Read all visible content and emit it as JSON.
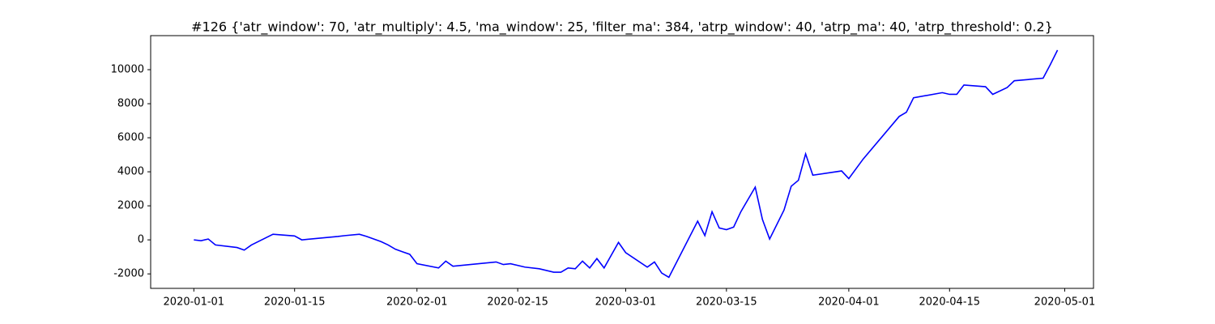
{
  "chart_data": {
    "type": "line",
    "title": "#126 {'atr_window': 70, 'atr_multiply': 4.5, 'ma_window': 25, 'filter_ma': 384, 'atrp_window': 40, 'atrp_ma': 40, 'atrp_threshold': 0.2}",
    "x": [
      "2020-01-01",
      "2020-01-02",
      "2020-01-03",
      "2020-01-04",
      "2020-01-07",
      "2020-01-08",
      "2020-01-09",
      "2020-01-12",
      "2020-01-15",
      "2020-01-16",
      "2020-01-21",
      "2020-01-22",
      "2020-01-24",
      "2020-01-25",
      "2020-01-27",
      "2020-01-28",
      "2020-01-29",
      "2020-01-30",
      "2020-01-31",
      "2020-02-01",
      "2020-02-04",
      "2020-02-05",
      "2020-02-06",
      "2020-02-12",
      "2020-02-13",
      "2020-02-14",
      "2020-02-16",
      "2020-02-18",
      "2020-02-20",
      "2020-02-21",
      "2020-02-22",
      "2020-02-23",
      "2020-02-24",
      "2020-02-25",
      "2020-02-26",
      "2020-02-27",
      "2020-02-29",
      "2020-03-01",
      "2020-03-04",
      "2020-03-05",
      "2020-03-06",
      "2020-03-07",
      "2020-03-11",
      "2020-03-12",
      "2020-03-13",
      "2020-03-14",
      "2020-03-15",
      "2020-03-16",
      "2020-03-17",
      "2020-03-19",
      "2020-03-20",
      "2020-03-21",
      "2020-03-23",
      "2020-03-24",
      "2020-03-25",
      "2020-03-26",
      "2020-03-27",
      "2020-03-31",
      "2020-04-01",
      "2020-04-03",
      "2020-04-08",
      "2020-04-09",
      "2020-04-10",
      "2020-04-14",
      "2020-04-15",
      "2020-04-16",
      "2020-04-17",
      "2020-04-20",
      "2020-04-21",
      "2020-04-23",
      "2020-04-24",
      "2020-04-28",
      "2020-04-29",
      "2020-04-30"
    ],
    "series": [
      {
        "color": "#0000ff",
        "values": [
          0,
          -50,
          50,
          -300,
          -450,
          -600,
          -300,
          330,
          230,
          0,
          200,
          250,
          330,
          200,
          -100,
          -300,
          -550,
          -700,
          -850,
          -1400,
          -1650,
          -1250,
          -1550,
          -1300,
          -1450,
          -1400,
          -1600,
          -1700,
          -1900,
          -1900,
          -1650,
          -1700,
          -1250,
          -1650,
          -1100,
          -1650,
          -150,
          -750,
          -1600,
          -1300,
          -1950,
          -2200,
          1100,
          250,
          1650,
          700,
          600,
          750,
          1650,
          3100,
          1200,
          50,
          1750,
          3150,
          3500,
          5050,
          3800,
          4050,
          3600,
          4750,
          7250,
          7500,
          8350,
          8650,
          8550,
          8550,
          9100,
          9000,
          8550,
          8950,
          9350,
          9500,
          10300,
          11150
        ]
      }
    ],
    "xlim": [
      "2019-12-26",
      "2020-05-05"
    ],
    "xticks": [
      "2020-01-01",
      "2020-01-15",
      "2020-02-01",
      "2020-02-15",
      "2020-03-01",
      "2020-03-15",
      "2020-04-01",
      "2020-04-15",
      "2020-05-01"
    ],
    "ylim": [
      -2850,
      12000
    ],
    "yticks": [
      -2000,
      0,
      2000,
      4000,
      6000,
      8000,
      10000
    ]
  }
}
